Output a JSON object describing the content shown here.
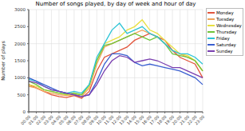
{
  "chart_data": {
    "type": "line",
    "title": "Number of songs played, by day of week and hour of day",
    "y_label": "Number of plays",
    "x": [
      "00:00",
      "01:00",
      "02:00",
      "03:00",
      "04:00",
      "05:00",
      "06:00",
      "07:00",
      "08:00",
      "09:00",
      "10:00",
      "11:00",
      "12:00",
      "13:00",
      "14:00",
      "15:00",
      "16:00",
      "17:00",
      "18:00",
      "19:00",
      "20:00",
      "21:00",
      "22:00",
      "23:00"
    ],
    "series": [
      {
        "name": "Monday",
        "color": "#e2553d",
        "values": [
          800,
          700,
          600,
          500,
          450,
          420,
          480,
          400,
          600,
          1200,
          1600,
          1700,
          1800,
          1900,
          2100,
          2200,
          2300,
          2200,
          2100,
          1800,
          1600,
          1500,
          1400,
          1000
        ]
      },
      {
        "name": "Tuesday",
        "color": "#f0a35a",
        "values": [
          750,
          700,
          600,
          550,
          500,
          480,
          500,
          450,
          700,
          1400,
          1900,
          2000,
          2100,
          2200,
          2300,
          2400,
          2300,
          2200,
          2000,
          1800,
          1700,
          1600,
          1500,
          1200
        ]
      },
      {
        "name": "Wednesday",
        "color": "#e8e040",
        "values": [
          800,
          750,
          650,
          600,
          550,
          500,
          520,
          500,
          750,
          1500,
          2000,
          2100,
          2200,
          2400,
          2500,
          2700,
          2400,
          2300,
          2100,
          1900,
          1700,
          1650,
          1500,
          1200
        ]
      },
      {
        "name": "Thursday",
        "color": "#6fc43a",
        "values": [
          900,
          800,
          650,
          600,
          550,
          520,
          550,
          500,
          800,
          1500,
          1950,
          2000,
          2100,
          2200,
          2300,
          2200,
          2100,
          2200,
          2000,
          1700,
          1650,
          1600,
          1500,
          1200
        ]
      },
      {
        "name": "Friday",
        "color": "#2ec4d6",
        "values": [
          950,
          900,
          750,
          650,
          600,
          550,
          600,
          550,
          800,
          1600,
          2000,
          2400,
          2600,
          2300,
          2400,
          2500,
          2300,
          2200,
          2000,
          1800,
          1700,
          1700,
          1600,
          1400
        ]
      },
      {
        "name": "Saturday",
        "color": "#3a5fd0",
        "values": [
          1000,
          900,
          800,
          700,
          600,
          550,
          500,
          450,
          500,
          900,
          1400,
          1700,
          1700,
          1650,
          1450,
          1350,
          1400,
          1350,
          1300,
          1250,
          1200,
          1100,
          1000,
          800
        ]
      },
      {
        "name": "Sunday",
        "color": "#7a3fb0",
        "values": [
          900,
          850,
          750,
          650,
          600,
          550,
          500,
          450,
          500,
          800,
          1200,
          1500,
          1650,
          1600,
          1450,
          1500,
          1550,
          1500,
          1400,
          1300,
          1300,
          1200,
          1100,
          1000
        ]
      }
    ],
    "ylim": [
      0,
      3000
    ],
    "yticks": [
      0,
      500,
      1000,
      1500,
      2000,
      2500,
      3000
    ],
    "grid": true,
    "legend": "right"
  }
}
